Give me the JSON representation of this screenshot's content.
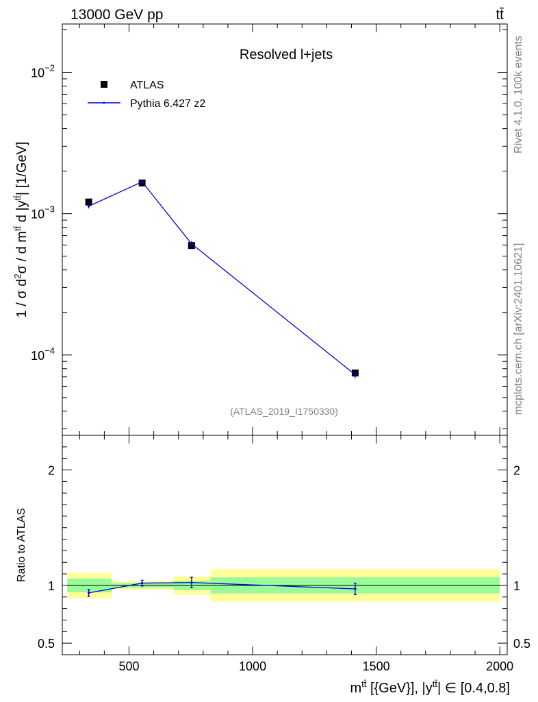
{
  "header": {
    "left": "13000 GeV pp",
    "right": "tt̄"
  },
  "side_labels": {
    "rivet": "Rivet 4.1.0,  100k events",
    "mcplots": "mcplots.cern.ch [arXiv:2401.10621]"
  },
  "chart_data": {
    "type": "line",
    "title": "Resolved l+jets",
    "analysis_id": "(ATLAS_2019_I1750330)",
    "ylabel_parts": [
      "1 / σ d",
      "2",
      "σ / d m",
      "tt̄",
      " d |y",
      "tt̄",
      "| [1/GeV]"
    ],
    "xlabel_parts": [
      "m",
      "tt̄",
      " [{GeV}], |y",
      "tt̄",
      "| ∈ [0.4,0.8]"
    ],
    "ratio_ylabel": "Ratio to ATLAS",
    "xlim": [
      230,
      2030
    ],
    "ylim": [
      2.7e-05,
      0.022
    ],
    "ratio_ylim": [
      0.4,
      2.3
    ],
    "x_ticks": [
      {
        "value": 500,
        "label": "500"
      },
      {
        "value": 1000,
        "label": "1000"
      },
      {
        "value": 1500,
        "label": "1500"
      },
      {
        "value": 2000,
        "label": "2000"
      }
    ],
    "y_major_ticks": [
      {
        "value": 0.0001,
        "base": "10",
        "exp": "−4"
      },
      {
        "value": 0.001,
        "base": "10",
        "exp": "−3"
      },
      {
        "value": 0.01,
        "base": "10",
        "exp": "−2"
      }
    ],
    "ratio_ticks": [
      {
        "value": 0.5,
        "label": "0.5"
      },
      {
        "value": 1,
        "label": "1"
      },
      {
        "value": 2,
        "label": "2"
      }
    ],
    "legend": [
      {
        "name": "ATLAS",
        "kind": "marker"
      },
      {
        "name": "Pythia 6.427 z2",
        "kind": "line"
      }
    ],
    "bins": [
      {
        "lo": 250,
        "hi": 430,
        "center": 337,
        "atlas": 0.00121,
        "atlas_err": 3e-05,
        "mc": 0.00113,
        "mc_err": 4e-05,
        "stat_band": 0.06,
        "total_band": 0.11,
        "ratio": 0.935,
        "ratio_err": 0.03
      },
      {
        "lo": 430,
        "hi": 680,
        "center": 553,
        "atlas": 0.00165,
        "atlas_err": 4e-05,
        "mc": 0.00168,
        "mc_err": 4e-05,
        "stat_band": 0.02,
        "total_band": 0.035,
        "ratio": 1.02,
        "ratio_err": 0.025
      },
      {
        "lo": 680,
        "hi": 830,
        "center": 753,
        "atlas": 0.000595,
        "atlas_err": 2e-05,
        "mc": 0.000612,
        "mc_err": 3e-05,
        "stat_band": 0.04,
        "total_band": 0.08,
        "ratio": 1.025,
        "ratio_err": 0.045
      },
      {
        "lo": 830,
        "hi": 2000,
        "center": 1415,
        "atlas": 7.45e-05,
        "atlas_err": 3e-06,
        "mc": 7.25e-05,
        "mc_err": 4e-06,
        "stat_band": 0.07,
        "total_band": 0.14,
        "ratio": 0.97,
        "ratio_err": 0.05
      }
    ],
    "colors": {
      "data": "#000000",
      "mc": "#0000dd",
      "stat_band": "#98fb98",
      "total_band": "#ffff99",
      "grey_text": "#808080"
    }
  }
}
